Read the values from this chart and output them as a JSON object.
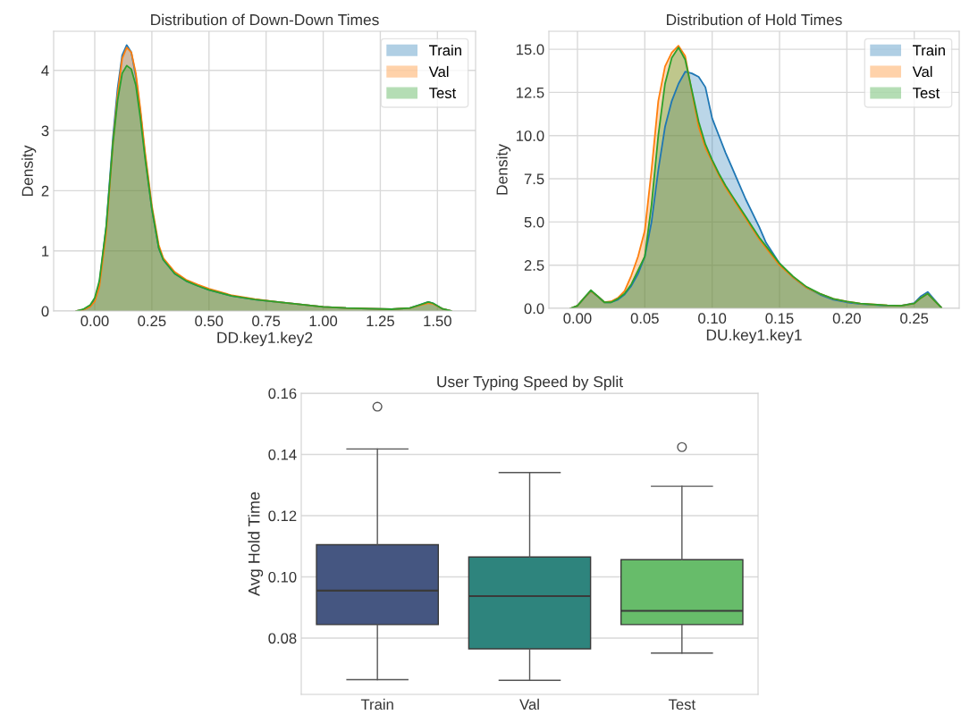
{
  "chart_data": [
    {
      "type": "area",
      "title": "Distribution of Down-Down Times",
      "xlabel": "DD.key1.key2",
      "ylabel": "Density",
      "xlim": [
        -0.18,
        1.667
      ],
      "ylim": [
        0,
        4.65
      ],
      "xticks": [
        {
          "value": 0,
          "label": "0.00"
        },
        0.25,
        {
          "value": 0.5,
          "label": "0.50"
        },
        0.75,
        {
          "value": 1,
          "label": "1.00"
        },
        1.25,
        {
          "value": 1.5,
          "label": "1.50"
        }
      ],
      "yticks": [
        0,
        1,
        2,
        3,
        4
      ],
      "grid": true,
      "legend": "top right",
      "x": [
        -0.08,
        -0.05,
        -0.02,
        0,
        0.02,
        0.05,
        0.08,
        0.1,
        0.12,
        0.14,
        0.16,
        0.18,
        0.2,
        0.22,
        0.25,
        0.28,
        0.3,
        0.35,
        0.4,
        0.45,
        0.5,
        0.6,
        0.7,
        0.8,
        0.9,
        1.0,
        1.1,
        1.2,
        1.3,
        1.38,
        1.42,
        1.46,
        1.48,
        1.52,
        1.56
      ],
      "series": [
        {
          "name": "Train",
          "color": "#1f77b4",
          "values": [
            0,
            0.02,
            0.08,
            0.18,
            0.45,
            1.4,
            2.9,
            3.7,
            4.25,
            4.42,
            4.3,
            3.9,
            3.3,
            2.6,
            1.7,
            1.05,
            0.85,
            0.62,
            0.5,
            0.42,
            0.35,
            0.25,
            0.19,
            0.15,
            0.11,
            0.07,
            0.05,
            0.04,
            0.03,
            0.05,
            0.1,
            0.15,
            0.13,
            0.04,
            0
          ]
        },
        {
          "name": "Val",
          "color": "#ff7f0e",
          "values": [
            0,
            0.02,
            0.07,
            0.16,
            0.4,
            1.3,
            2.8,
            3.6,
            4.2,
            4.38,
            4.3,
            3.95,
            3.35,
            2.65,
            1.75,
            1.1,
            0.88,
            0.65,
            0.52,
            0.44,
            0.37,
            0.26,
            0.2,
            0.15,
            0.11,
            0.07,
            0.05,
            0.04,
            0.03,
            0.05,
            0.09,
            0.13,
            0.12,
            0.04,
            0
          ]
        },
        {
          "name": "Test",
          "color": "#2ca02c",
          "values": [
            0,
            0.03,
            0.1,
            0.22,
            0.5,
            1.4,
            2.8,
            3.5,
            3.95,
            4.08,
            4.02,
            3.75,
            3.2,
            2.55,
            1.7,
            1.05,
            0.85,
            0.62,
            0.5,
            0.42,
            0.35,
            0.25,
            0.19,
            0.15,
            0.11,
            0.07,
            0.05,
            0.04,
            0.03,
            0.05,
            0.1,
            0.15,
            0.13,
            0.04,
            0
          ]
        }
      ]
    },
    {
      "type": "area",
      "title": "Distribution of Hold Times",
      "xlabel": "DU.key1.key1",
      "ylabel": "Density",
      "xlim": [
        -0.0212,
        0.2834
      ],
      "ylim": [
        0,
        16.04
      ],
      "xticks": [
        {
          "value": 0,
          "label": "0.00"
        },
        0.05,
        {
          "value": 0.1,
          "label": "0.10"
        },
        0.15,
        {
          "value": 0.2,
          "label": "0.20"
        },
        0.25
      ],
      "yticks": [
        {
          "value": 0,
          "label": "0.0"
        },
        2.5,
        {
          "value": 5,
          "label": "5.0"
        },
        7.5,
        {
          "value": 10,
          "label": "10.0"
        },
        12.5,
        {
          "value": 15,
          "label": "15.0"
        }
      ],
      "grid": true,
      "legend": "top right",
      "x": [
        -0.005,
        0,
        0.005,
        0.01,
        0.015,
        0.02,
        0.025,
        0.03,
        0.035,
        0.04,
        0.045,
        0.05,
        0.055,
        0.06,
        0.065,
        0.07,
        0.075,
        0.08,
        0.085,
        0.09,
        0.095,
        0.1,
        0.105,
        0.11,
        0.115,
        0.12,
        0.125,
        0.13,
        0.135,
        0.14,
        0.15,
        0.16,
        0.17,
        0.18,
        0.19,
        0.2,
        0.21,
        0.22,
        0.23,
        0.24,
        0.25,
        0.255,
        0.26,
        0.265,
        0.27
      ],
      "series": [
        {
          "name": "Train",
          "color": "#1f77b4",
          "values": [
            0,
            0.15,
            0.6,
            1.0,
            0.7,
            0.35,
            0.35,
            0.5,
            0.8,
            1.3,
            2.0,
            3.0,
            5.0,
            8.0,
            10.5,
            12.0,
            13.0,
            13.7,
            13.6,
            13.4,
            12.8,
            11.0,
            10.0,
            9.0,
            8.1,
            7.2,
            6.3,
            5.5,
            4.7,
            3.8,
            2.6,
            1.8,
            1.2,
            0.8,
            0.5,
            0.35,
            0.25,
            0.2,
            0.15,
            0.15,
            0.3,
            0.7,
            0.95,
            0.5,
            0.05
          ]
        },
        {
          "name": "Val",
          "color": "#ff7f0e",
          "values": [
            0,
            0.15,
            0.6,
            1.0,
            0.7,
            0.35,
            0.4,
            0.6,
            1.0,
            1.9,
            3.0,
            4.5,
            8.0,
            12.0,
            14.0,
            14.8,
            15.2,
            14.6,
            12.5,
            10.5,
            9.3,
            8.5,
            7.7,
            7.0,
            6.4,
            5.8,
            5.2,
            4.6,
            4.0,
            3.5,
            2.5,
            1.8,
            1.2,
            0.85,
            0.55,
            0.4,
            0.28,
            0.22,
            0.17,
            0.15,
            0.28,
            0.6,
            0.85,
            0.45,
            0.05
          ]
        },
        {
          "name": "Test",
          "color": "#2ca02c",
          "values": [
            0,
            0.15,
            0.6,
            1.05,
            0.7,
            0.35,
            0.35,
            0.55,
            0.85,
            1.4,
            2.2,
            3.0,
            6.0,
            10.0,
            13.0,
            14.5,
            15.1,
            14.4,
            12.6,
            10.8,
            9.5,
            8.6,
            7.8,
            7.1,
            6.5,
            5.9,
            5.3,
            4.7,
            4.1,
            3.6,
            2.6,
            1.85,
            1.25,
            0.85,
            0.55,
            0.4,
            0.28,
            0.22,
            0.17,
            0.15,
            0.28,
            0.6,
            0.85,
            0.45,
            0.05
          ]
        }
      ]
    },
    {
      "type": "box",
      "title": "User Typing Speed by Split",
      "ylabel": "Avg Hold Time",
      "categories": [
        "Train",
        "Val",
        "Test"
      ],
      "ylim": [
        0.0616,
        0.16
      ],
      "yticks": [
        0.08,
        {
          "value": 0.1,
          "label": "0.10"
        },
        0.12,
        0.14,
        0.16
      ],
      "grid": "y",
      "colors": [
        "#455681",
        "#2e847d",
        "#67bc6a"
      ],
      "boxes": [
        {
          "low": 0.0664,
          "q1": 0.0844,
          "median": 0.0955,
          "q3": 0.1105,
          "high": 0.1418,
          "outliers": [
            0.1556
          ]
        },
        {
          "low": 0.0662,
          "q1": 0.0765,
          "median": 0.0937,
          "q3": 0.1065,
          "high": 0.1341
        },
        {
          "low": 0.0751,
          "q1": 0.0844,
          "median": 0.0889,
          "q3": 0.1056,
          "high": 0.1296,
          "outliers": [
            0.1424
          ]
        }
      ]
    }
  ]
}
